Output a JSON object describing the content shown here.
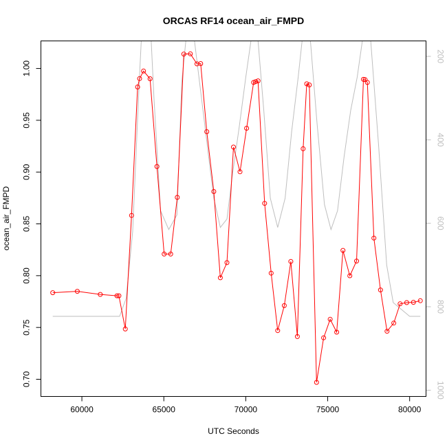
{
  "chart_data": {
    "type": "line",
    "title": "ORCAS RF14 ocean_air_FMPD",
    "xlabel": "UTC Seconds",
    "ylabel": "ocean_air_FMPD",
    "xlim": [
      57500,
      81000
    ],
    "ylim": [
      0.6834,
      1.0266
    ],
    "y2lim": [
      1015,
      163
    ],
    "y2_reversed": true,
    "x_ticks": [
      60000,
      65000,
      70000,
      75000,
      80000
    ],
    "x_tick_labels": [
      "60000",
      "65000",
      "70000",
      "75000",
      "80000"
    ],
    "y_ticks": [
      0.7,
      0.75,
      0.8,
      0.85,
      0.9,
      0.95,
      1.0
    ],
    "y_tick_labels": [
      "0.70",
      "0.75",
      "0.80",
      "0.85",
      "0.90",
      "0.95",
      "1.00"
    ],
    "y2_ticks": [
      200,
      400,
      600,
      800,
      1000
    ],
    "y2_tick_labels": [
      "200",
      "400",
      "600",
      "800",
      "1000"
    ],
    "grid": false,
    "legend": "none",
    "series": [
      {
        "color": "#ff0000",
        "marker": "open-circle",
        "x": [
          58220,
          59720,
          61120,
          62140,
          62260,
          62650,
          63030,
          63400,
          63520,
          63760,
          64160,
          64580,
          65020,
          65420,
          65820,
          66220,
          66620,
          67020,
          67250,
          67620,
          68050,
          68450,
          68850,
          69250,
          69650,
          70050,
          70480,
          70600,
          70750,
          71150,
          71550,
          71950,
          72350,
          72750,
          73150,
          73500,
          73720,
          73880,
          74320,
          74750,
          75150,
          75550,
          75930,
          76350,
          76760,
          77180,
          77280,
          77420,
          77820,
          78220,
          78620,
          79030,
          79420,
          79820,
          80230,
          80650
        ],
        "y": [
          0.7836,
          0.7849,
          0.7819,
          0.7806,
          0.7806,
          0.7485,
          0.8581,
          0.9821,
          0.9902,
          0.9975,
          0.9901,
          0.9054,
          0.8209,
          0.8209,
          0.8756,
          1.0139,
          1.0141,
          1.0044,
          1.0047,
          0.939,
          0.8812,
          0.798,
          0.8126,
          0.9241,
          0.9003,
          0.9423,
          0.9865,
          0.9873,
          0.988,
          0.8698,
          0.8024,
          0.747,
          0.7711,
          0.8137,
          0.7412,
          0.9225,
          0.9852,
          0.9841,
          0.697,
          0.74,
          0.7579,
          0.7455,
          0.8244,
          0.7999,
          0.8141,
          0.9895,
          0.9892,
          0.9865,
          0.8363,
          0.7862,
          0.7463,
          0.7542,
          0.7728,
          0.774,
          0.7743,
          0.7758
        ]
      },
      {
        "color": "#bebebe",
        "axis": "right",
        "x": [
          58220,
          59000,
          60000,
          61000,
          62000,
          62300,
          62700,
          63100,
          63500,
          63650,
          64200,
          64400,
          64800,
          65300,
          65800,
          66100,
          66400,
          66800,
          67300,
          67700,
          68050,
          68450,
          68850,
          69200,
          69600,
          70000,
          70400,
          70700,
          71100,
          71500,
          71950,
          72400,
          72800,
          73200,
          73500,
          73900,
          74350,
          74800,
          75200,
          75600,
          76000,
          76400,
          76800,
          77200,
          77600,
          78100,
          78600,
          79000,
          80000,
          80650
        ],
        "y": [
          823,
          823,
          823,
          823,
          823,
          823,
          780,
          620,
          260,
          140,
          140,
          300,
          570,
          615,
          580,
          260,
          140,
          140,
          300,
          430,
          540,
          610,
          590,
          480,
          370,
          250,
          140,
          140,
          330,
          540,
          610,
          540,
          380,
          250,
          140,
          140,
          360,
          555,
          615,
          570,
          440,
          330,
          250,
          140,
          150,
          410,
          700,
          790,
          823,
          823
        ]
      }
    ]
  }
}
